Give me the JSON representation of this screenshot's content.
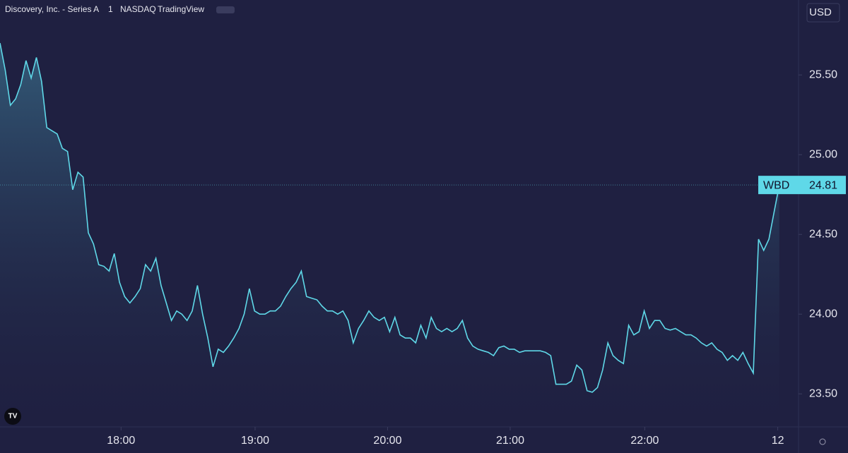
{
  "chart_data": {
    "type": "area",
    "title": "Discovery, Inc. - Series A",
    "interval": "1",
    "exchange": "NASDAQ",
    "source": "TradingView",
    "currency": "USD",
    "symbol": "WBD",
    "color": "#5fd8e8",
    "values": [
      25.7,
      25.53,
      25.31,
      25.35,
      25.44,
      25.59,
      25.48,
      25.61,
      25.46,
      25.17,
      25.15,
      25.13,
      25.04,
      25.02,
      24.78,
      24.89,
      24.86,
      24.51,
      24.44,
      24.31,
      24.3,
      24.27,
      24.38,
      24.2,
      24.11,
      24.07,
      24.11,
      24.16,
      24.31,
      24.27,
      24.35,
      24.18,
      24.07,
      23.96,
      24.02,
      24.0,
      23.96,
      24.02,
      24.18,
      24.0,
      23.85,
      23.67,
      23.78,
      23.76,
      23.8,
      23.85,
      23.91,
      24.0,
      24.16,
      24.02,
      24.0,
      24.0,
      24.02,
      24.02,
      24.05,
      24.11,
      24.16,
      24.2,
      24.27,
      24.11,
      24.1,
      24.09,
      24.05,
      24.02,
      24.02,
      24.0,
      24.02,
      23.96,
      23.82,
      23.91,
      23.96,
      24.02,
      23.98,
      23.96,
      23.98,
      23.89,
      23.98,
      23.87,
      23.85,
      23.85,
      23.82,
      23.93,
      23.85,
      23.98,
      23.91,
      23.89,
      23.91,
      23.89,
      23.91,
      23.96,
      23.85,
      23.8,
      23.78,
      23.77,
      23.76,
      23.74,
      23.79,
      23.8,
      23.78,
      23.78,
      23.76,
      23.77,
      23.77,
      23.77,
      23.77,
      23.76,
      23.74,
      23.56,
      23.56,
      23.56,
      23.58,
      23.68,
      23.65,
      23.52,
      23.51,
      23.54,
      23.65,
      23.82,
      23.74,
      23.71,
      23.69,
      23.93,
      23.87,
      23.89,
      24.02,
      23.91,
      23.96,
      23.96,
      23.91,
      23.9,
      23.91,
      23.89,
      23.87,
      23.87,
      23.85,
      23.82,
      23.8,
      23.82,
      23.78,
      23.76,
      23.71,
      23.74,
      23.71,
      23.76,
      23.69,
      23.63,
      24.47,
      24.4,
      24.47,
      24.64,
      24.81
    ],
    "xlim": [
      0,
      153.7
    ],
    "xticks": [
      {
        "value": 23.3,
        "label": "18:00"
      },
      {
        "value": 49.1,
        "label": "19:00"
      },
      {
        "value": 74.6,
        "label": "20:00"
      },
      {
        "value": 98.2,
        "label": "21:00"
      },
      {
        "value": 124.1,
        "label": "22:00"
      },
      {
        "value": 149.7,
        "label": "12"
      }
    ],
    "ylim": [
      23.3,
      25.97
    ],
    "yticks": [
      {
        "value": 23.5,
        "label": "23.50"
      },
      {
        "value": 24.0,
        "label": "24.00"
      },
      {
        "value": 24.5,
        "label": "24.50"
      },
      {
        "value": 25.0,
        "label": "25.00"
      },
      {
        "value": 25.5,
        "label": "25.50"
      }
    ]
  }
}
